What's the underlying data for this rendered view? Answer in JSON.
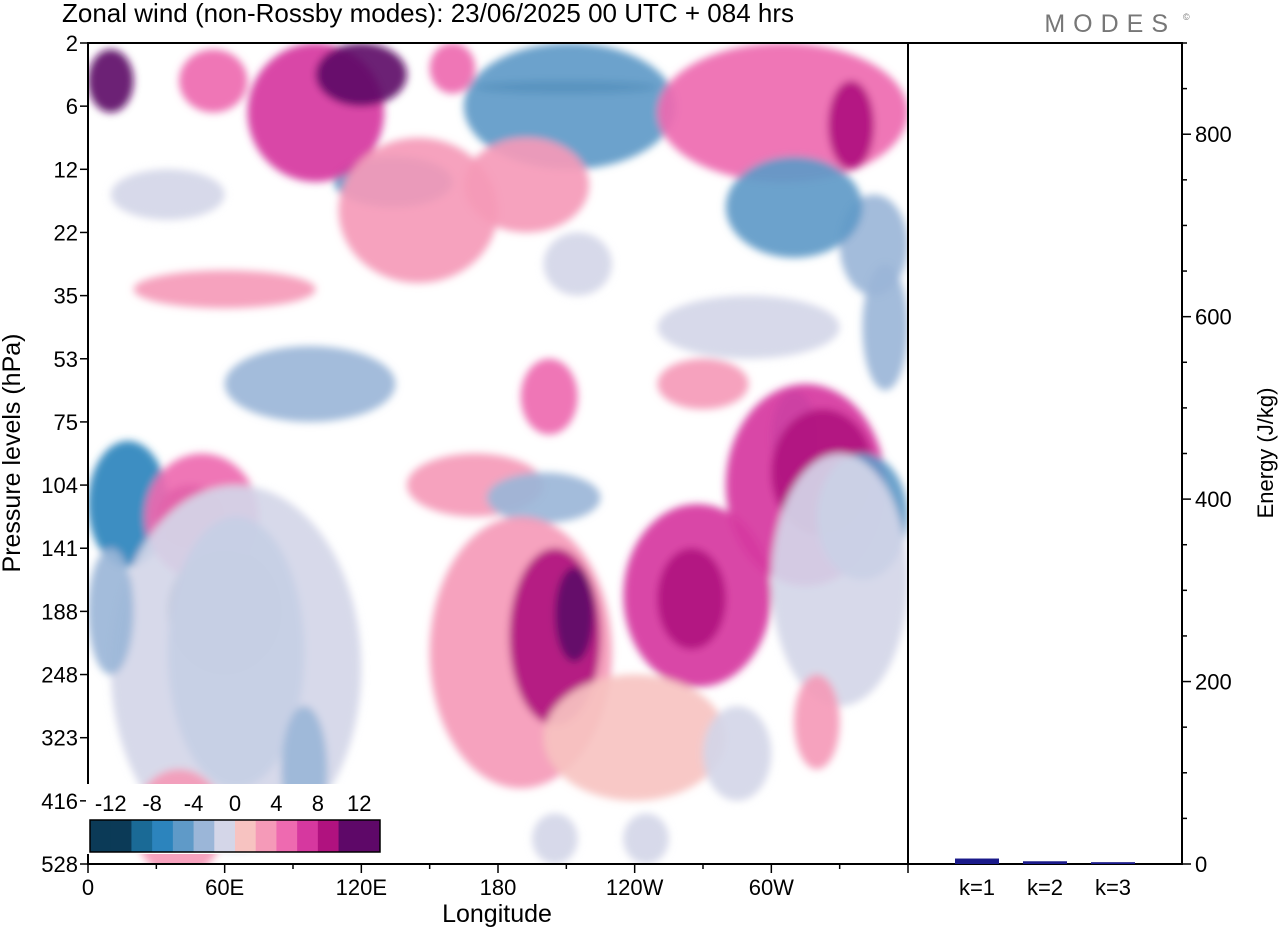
{
  "title": "Zonal wind (non-Rossby modes):  23/06/2025  00 UTC  + 084 hrs",
  "logo_text": "MODES",
  "logo_mark": "©",
  "colors": {
    "neg_12": "#0b3a57",
    "neg_10": "#1a6a96",
    "neg_8": "#2c84bd",
    "neg_6": "#5f9ac8",
    "neg_4": "#9bb6d8",
    "neg_2": "#d4d6e8",
    "zero": "#ffffff",
    "pos_2": "#f7c3c1",
    "pos_4": "#f59ab8",
    "pos_6": "#ee6ab0",
    "pos_8": "#d6389f",
    "pos_10": "#b0127f",
    "pos_12": "#5e0868",
    "bar": "#1a1a8a"
  },
  "chart_data": [
    {
      "type": "heatmap",
      "title": "Zonal wind (non-Rossby modes):  23/06/2025  00 UTC  + 084 hrs",
      "xlabel": "Longitude",
      "ylabel": "Pressure levels (hPa)",
      "xlim": [
        0,
        360
      ],
      "x_ticks": [
        {
          "lon": 0,
          "label": "0"
        },
        {
          "lon": 60,
          "label": "60E"
        },
        {
          "lon": 120,
          "label": "120E"
        },
        {
          "lon": 180,
          "label": "180"
        },
        {
          "lon": 240,
          "label": "120W"
        },
        {
          "lon": 300,
          "label": "60W"
        }
      ],
      "y_levels": [
        "2",
        "6",
        "12",
        "22",
        "35",
        "53",
        "75",
        "104",
        "141",
        "188",
        "248",
        "323",
        "416",
        "528"
      ],
      "colorbar": {
        "levels": [
          -14,
          -12,
          -10,
          -8,
          -6,
          -4,
          -2,
          0,
          2,
          4,
          6,
          8,
          10,
          12,
          14
        ],
        "tick_labels": [
          "-12",
          "-8",
          "-4",
          "0",
          "4",
          "8",
          "12"
        ],
        "placement": "bottom-left"
      },
      "features": [
        {
          "lon": [
            170,
            250
          ],
          "lev": [
            0.6,
            0.8
          ],
          "value": -13
        },
        {
          "lon": [
            165,
            258
          ],
          "lev": [
            0.0,
            2.0
          ],
          "value": -6
        },
        {
          "lon": [
            108,
            160
          ],
          "lev": [
            1.8,
            2.6
          ],
          "value": -5
        },
        {
          "lon": [
            0,
            20
          ],
          "lev": [
            0.1,
            1.1
          ],
          "value": 11
        },
        {
          "lon": [
            40,
            70
          ],
          "lev": [
            0.1,
            1.1
          ],
          "value": 6
        },
        {
          "lon": [
            70,
            130
          ],
          "lev": [
            0.0,
            2.2
          ],
          "value": 8
        },
        {
          "lon": [
            100,
            140
          ],
          "lev": [
            0.0,
            1.0
          ],
          "value": 12
        },
        {
          "lon": [
            150,
            170
          ],
          "lev": [
            0.0,
            0.8
          ],
          "value": 5
        },
        {
          "lon": [
            250,
            360
          ],
          "lev": [
            0.0,
            2.2
          ],
          "value": 6
        },
        {
          "lon": [
            325,
            345
          ],
          "lev": [
            0.6,
            2.0
          ],
          "value": 9
        },
        {
          "lon": [
            330,
            360
          ],
          "lev": [
            2.4,
            4.0
          ],
          "value": -4
        },
        {
          "lon": [
            280,
            340
          ],
          "lev": [
            1.8,
            3.4
          ],
          "value": -5
        },
        {
          "lon": [
            10,
            60
          ],
          "lev": [
            2.0,
            2.8
          ],
          "value": -2
        },
        {
          "lon": [
            165,
            220
          ],
          "lev": [
            1.5,
            3.0
          ],
          "value": 3
        },
        {
          "lon": [
            110,
            180
          ],
          "lev": [
            1.5,
            3.8
          ],
          "value": 3
        },
        {
          "lon": [
            200,
            230
          ],
          "lev": [
            3.0,
            4.0
          ],
          "value": -2
        },
        {
          "lon": [
            250,
            330
          ],
          "lev": [
            4.0,
            5.0
          ],
          "value": -2
        },
        {
          "lon": [
            340,
            360
          ],
          "lev": [
            3.5,
            5.5
          ],
          "value": -4
        },
        {
          "lon": [
            20,
            100
          ],
          "lev": [
            3.6,
            4.2
          ],
          "value": 3
        },
        {
          "lon": [
            190,
            215
          ],
          "lev": [
            5.0,
            6.2
          ],
          "value": 6
        },
        {
          "lon": [
            250,
            290
          ],
          "lev": [
            5.0,
            5.8
          ],
          "value": 4
        },
        {
          "lon": [
            60,
            135
          ],
          "lev": [
            4.8,
            6.0
          ],
          "value": -3
        },
        {
          "lon": [
            300,
            320
          ],
          "lev": [
            5.5,
            7.0
          ],
          "value": -6
        },
        {
          "lon": [
            140,
            200
          ],
          "lev": [
            6.5,
            7.5
          ],
          "value": 4
        },
        {
          "lon": [
            175,
            225
          ],
          "lev": [
            6.8,
            7.6
          ],
          "value": -3
        },
        {
          "lon": [
            0,
            35
          ],
          "lev": [
            6.3,
            8.3
          ],
          "value": -7
        },
        {
          "lon": [
            30,
            60
          ],
          "lev": [
            7.0,
            8.0
          ],
          "value": 11
        },
        {
          "lon": [
            25,
            75
          ],
          "lev": [
            6.5,
            8.5
          ],
          "value": 5
        },
        {
          "lon": [
            35,
            85
          ],
          "lev": [
            8.0,
            10.0
          ],
          "value": -12
        },
        {
          "lon": [
            35,
            95
          ],
          "lev": [
            7.5,
            11.8
          ],
          "value": -7
        },
        {
          "lon": [
            10,
            120
          ],
          "lev": [
            7.0,
            12.8
          ],
          "value": -2
        },
        {
          "lon": [
            85,
            105
          ],
          "lev": [
            10.5,
            12.5
          ],
          "value": -4
        },
        {
          "lon": [
            150,
            230
          ],
          "lev": [
            7.5,
            11.8
          ],
          "value": 4
        },
        {
          "lon": [
            185,
            225
          ],
          "lev": [
            8.0,
            10.8
          ],
          "value": 9
        },
        {
          "lon": [
            205,
            222
          ],
          "lev": [
            8.3,
            9.8
          ],
          "value": 12
        },
        {
          "lon": [
            235,
            300
          ],
          "lev": [
            7.3,
            10.2
          ],
          "value": 7
        },
        {
          "lon": [
            250,
            280
          ],
          "lev": [
            8.0,
            9.6
          ],
          "value": 10
        },
        {
          "lon": [
            280,
            350
          ],
          "lev": [
            5.4,
            8.6
          ],
          "value": 7
        },
        {
          "lon": [
            300,
            345
          ],
          "lev": [
            5.8,
            7.8
          ],
          "value": 10
        },
        {
          "lon": [
            320,
            360
          ],
          "lev": [
            6.5,
            8.5
          ],
          "value": -6
        },
        {
          "lon": [
            300,
            360
          ],
          "lev": [
            6.5,
            10.5
          ],
          "value": -2
        },
        {
          "lon": [
            0,
            20
          ],
          "lev": [
            8.0,
            10.0
          ],
          "value": -4
        },
        {
          "lon": [
            200,
            280
          ],
          "lev": [
            10.0,
            12.0
          ],
          "value": 2
        },
        {
          "lon": [
            20,
            60
          ],
          "lev": [
            11.5,
            13.2
          ],
          "value": 3
        },
        {
          "lon": [
            310,
            330
          ],
          "lev": [
            10.0,
            11.5
          ],
          "value": 3
        },
        {
          "lon": [
            270,
            300
          ],
          "lev": [
            10.5,
            12.0
          ],
          "value": -2
        },
        {
          "lon": [
            195,
            215
          ],
          "lev": [
            12.2,
            13.0
          ],
          "value": -2
        },
        {
          "lon": [
            235,
            255
          ],
          "lev": [
            12.2,
            13.0
          ],
          "value": -2
        }
      ]
    },
    {
      "type": "bar",
      "categories": [
        "k=1",
        "k=2",
        "k=3"
      ],
      "values": [
        6,
        3,
        2
      ],
      "ylabel": "Energy (J/kg)",
      "ylim": [
        0,
        900
      ],
      "y_ticks": [
        0,
        200,
        400,
        600,
        800
      ],
      "y_minor_step": 50
    }
  ]
}
